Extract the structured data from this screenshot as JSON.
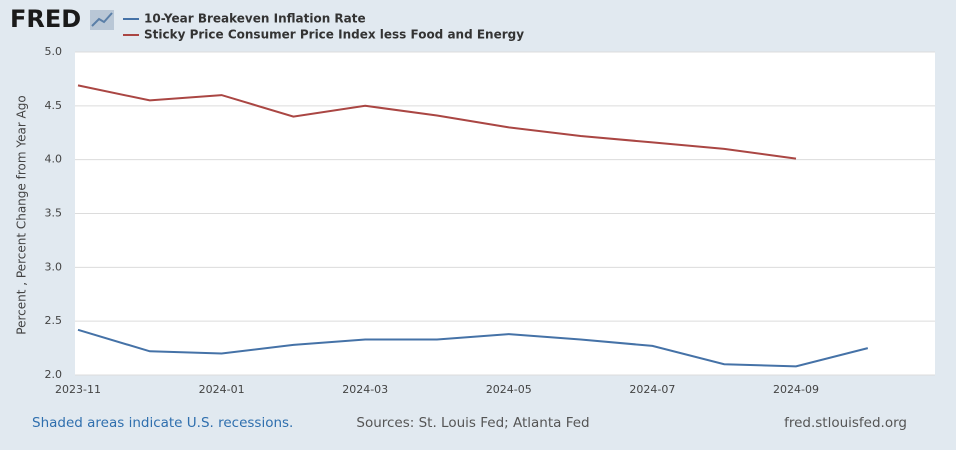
{
  "chart_data": {
    "type": "line",
    "logo": "FRED",
    "y_label": "Percent , Percent Change from Year Ago",
    "footnote": "Shaded areas indicate U.S. recessions.",
    "source": "Sources: St. Louis Fed; Atlanta Fed",
    "website": "fred.stlouisfed.org",
    "x": [
      "2023-11",
      null,
      "2024-01",
      null,
      "2024-03",
      null,
      "2024-05",
      null,
      "2024-07",
      null,
      "2024-09",
      null
    ],
    "series": [
      {
        "name": "10-Year Breakeven Inflation Rate",
        "color": "#4572a7",
        "values": [
          2.42,
          2.22,
          2.2,
          2.28,
          2.33,
          2.33,
          2.38,
          2.33,
          2.27,
          2.1,
          2.08,
          2.25
        ]
      },
      {
        "name": "Sticky Price Consumer Price Index less Food and Energy",
        "color": "#aa4643",
        "values": [
          4.69,
          4.55,
          4.6,
          4.4,
          4.5,
          4.41,
          4.3,
          4.22,
          4.16,
          4.1,
          4.01,
          null
        ]
      }
    ],
    "ylim": [
      2.0,
      5.0
    ],
    "yticks": [
      {
        "value": 2,
        "label": "2.0"
      },
      {
        "value": 2.5,
        "label": "2.5"
      },
      {
        "value": 3,
        "label": "3.0"
      },
      {
        "value": 3.5,
        "label": "3.5"
      },
      {
        "value": 4,
        "label": "4.0"
      },
      {
        "value": 4.5,
        "label": "4.5"
      },
      {
        "value": 5,
        "label": "5.0"
      }
    ],
    "grid": true
  }
}
